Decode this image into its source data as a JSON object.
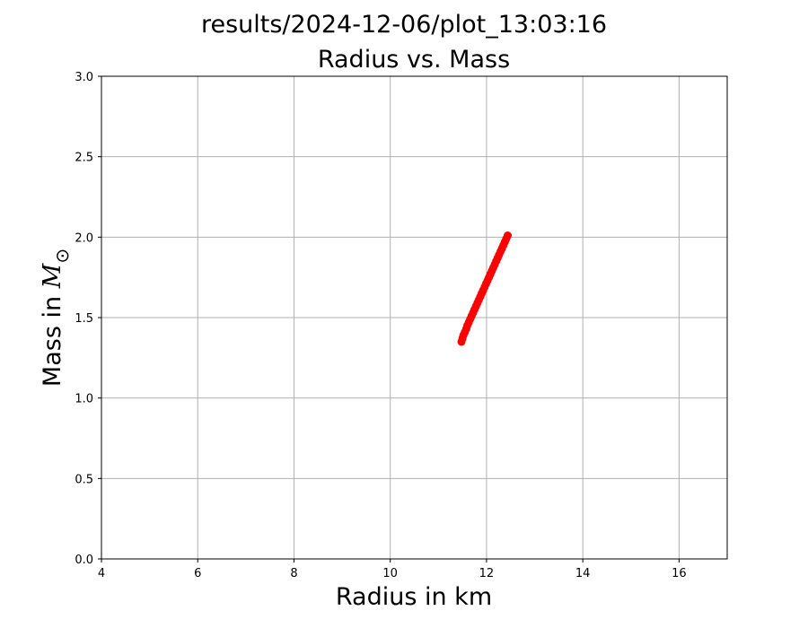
{
  "figure": {
    "suptitle": "results/2024-12-06/plot_13:03:16"
  },
  "chart_data": {
    "type": "scatter",
    "title": "Radius vs. Mass",
    "xlabel": "Radius in km",
    "ylabel_prefix": "Mass in ",
    "ylabel_symbol": "M",
    "ylabel_subscript": "⊙",
    "xlim": [
      4,
      17
    ],
    "ylim": [
      0.0,
      3.0
    ],
    "x_ticks": [
      4,
      6,
      8,
      10,
      12,
      14,
      16
    ],
    "x_tick_labels": [
      "4",
      "6",
      "8",
      "10",
      "12",
      "14",
      "16"
    ],
    "y_ticks": [
      0.0,
      0.5,
      1.0,
      1.5,
      2.0,
      2.5,
      3.0
    ],
    "y_tick_labels": [
      "0.0",
      "0.5",
      "1.0",
      "1.5",
      "2.0",
      "2.5",
      "3.0"
    ],
    "grid": true,
    "marker_color": "#ff0000",
    "series": [
      {
        "x": [
          11.48,
          11.5,
          11.52,
          11.55,
          11.58,
          11.6,
          11.63,
          11.66,
          11.69,
          11.72,
          11.75,
          11.78,
          11.81,
          11.84,
          11.87,
          11.9,
          11.93,
          11.96,
          11.99,
          12.02,
          12.05,
          12.08,
          12.11,
          12.14,
          12.17,
          12.2,
          12.23,
          12.26,
          12.29,
          12.32,
          12.35,
          12.38,
          12.41,
          12.44
        ],
        "y": [
          1.35,
          1.37,
          1.39,
          1.41,
          1.43,
          1.45,
          1.47,
          1.49,
          1.51,
          1.53,
          1.55,
          1.57,
          1.59,
          1.61,
          1.63,
          1.65,
          1.67,
          1.69,
          1.71,
          1.73,
          1.75,
          1.77,
          1.79,
          1.81,
          1.83,
          1.85,
          1.87,
          1.89,
          1.91,
          1.93,
          1.95,
          1.97,
          1.99,
          2.01
        ]
      }
    ]
  }
}
